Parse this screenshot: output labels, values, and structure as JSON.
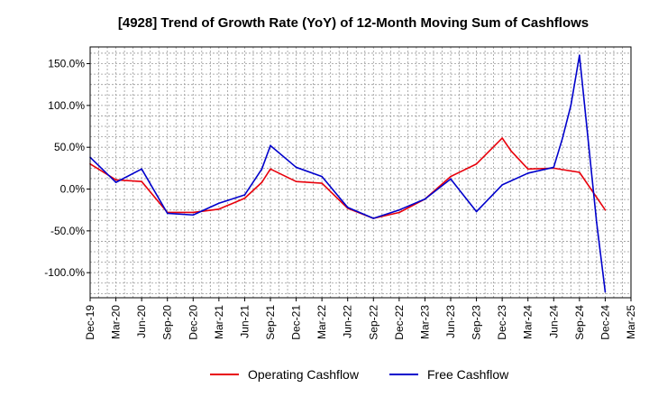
{
  "chart_data": {
    "type": "line",
    "title": "[4928]  Trend of Growth Rate (YoY) of 12-Month Moving Sum of Cashflows",
    "xlabel": "",
    "ylabel": "",
    "ylim": [
      -130,
      170
    ],
    "grid": true,
    "legend_position": "bottom",
    "x_ticks": [
      "Dec-19",
      "Mar-20",
      "Jun-20",
      "Sep-20",
      "Dec-20",
      "Mar-21",
      "Jun-21",
      "Sep-21",
      "Dec-21",
      "Mar-22",
      "Jun-22",
      "Sep-22",
      "Dec-22",
      "Mar-23",
      "Jun-23",
      "Sep-23",
      "Dec-23",
      "Mar-24",
      "Jun-24",
      "Sep-24",
      "Dec-24",
      "Mar-25"
    ],
    "y_ticks": [
      {
        "value": 150,
        "label": "150.0%"
      },
      {
        "value": 100,
        "label": "100.0%"
      },
      {
        "value": 50,
        "label": "50.0%"
      },
      {
        "value": 0,
        "label": "0.0%"
      },
      {
        "value": -50,
        "label": "-50.0%"
      },
      {
        "value": -100,
        "label": "-100.0%"
      }
    ],
    "series": [
      {
        "name": "Operating Cashflow",
        "color": "#e8000b",
        "points": [
          [
            "Dec-19",
            30
          ],
          [
            "Mar-20",
            11
          ],
          [
            "Jun-20",
            9
          ],
          [
            "Sep-20",
            -28
          ],
          [
            "Dec-20",
            -28
          ],
          [
            "Mar-21",
            -24
          ],
          [
            "Jun-21",
            -11
          ],
          [
            "Aug-21",
            8
          ],
          [
            "Sep-21",
            24
          ],
          [
            "Dec-21",
            9
          ],
          [
            "Mar-22",
            7
          ],
          [
            "Jun-22",
            -23
          ],
          [
            "Sep-22",
            -35
          ],
          [
            "Dec-22",
            -28
          ],
          [
            "Mar-23",
            -12
          ],
          [
            "Jun-23",
            15
          ],
          [
            "Sep-23",
            30
          ],
          [
            "Dec-23",
            61
          ],
          [
            "Jan-24",
            46
          ],
          [
            "Mar-24",
            24
          ],
          [
            "Jun-24",
            25
          ],
          [
            "Sep-24",
            20
          ],
          [
            "Dec-24",
            -25
          ]
        ]
      },
      {
        "name": "Free Cashflow",
        "color": "#0000cc",
        "points": [
          [
            "Dec-19",
            38
          ],
          [
            "Mar-20",
            8
          ],
          [
            "Jun-20",
            24
          ],
          [
            "Sep-20",
            -29
          ],
          [
            "Dec-20",
            -31
          ],
          [
            "Mar-21",
            -17
          ],
          [
            "Jun-21",
            -7
          ],
          [
            "Aug-21",
            24
          ],
          [
            "Sep-21",
            52
          ],
          [
            "Dec-21",
            26
          ],
          [
            "Mar-22",
            15
          ],
          [
            "Jun-22",
            -22
          ],
          [
            "Sep-22",
            -35
          ],
          [
            "Dec-22",
            -25
          ],
          [
            "Mar-23",
            -12
          ],
          [
            "Jun-23",
            12
          ],
          [
            "Sep-23",
            -27
          ],
          [
            "Dec-23",
            5
          ],
          [
            "Mar-24",
            19
          ],
          [
            "Jun-24",
            26
          ],
          [
            "Jul-24",
            60
          ],
          [
            "Aug-24",
            100
          ],
          [
            "Sep-24",
            160
          ],
          [
            "Oct-24",
            60
          ],
          [
            "Nov-24",
            -40
          ],
          [
            "Dec-24",
            -123
          ]
        ]
      }
    ]
  }
}
